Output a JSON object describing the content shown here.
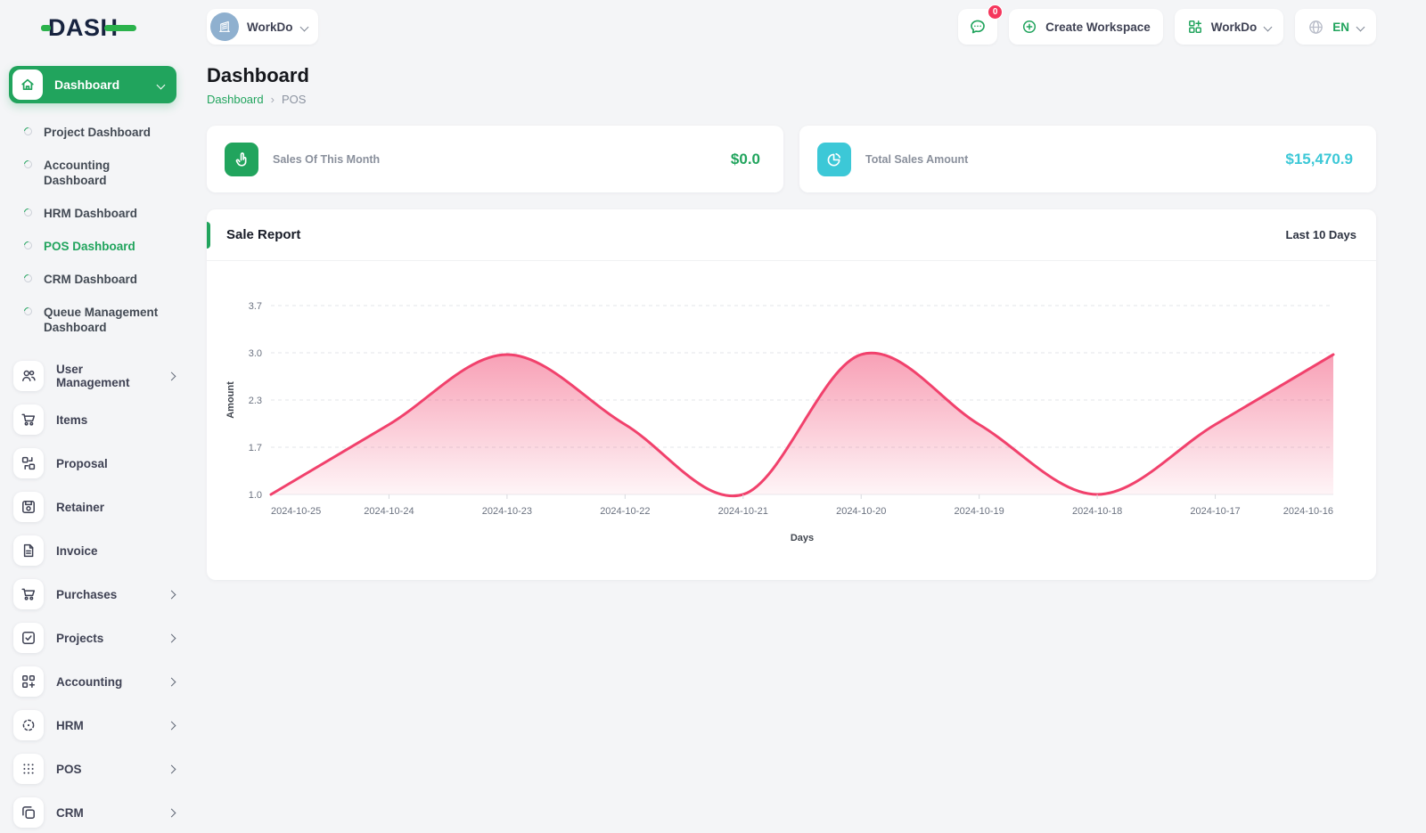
{
  "brand": {
    "logo_text": "DASH"
  },
  "topbar": {
    "workspace_switcher": {
      "label": "WorkDo"
    },
    "messages_button": {
      "badge": "0"
    },
    "create_workspace": {
      "label": "Create Workspace"
    },
    "workspace_menu": {
      "label": "WorkDo"
    },
    "language_menu": {
      "label": "EN"
    }
  },
  "page": {
    "title": "Dashboard",
    "breadcrumb": {
      "root": "Dashboard",
      "separator": "›",
      "current": "POS"
    }
  },
  "sidebar": {
    "dashboard": {
      "label": "Dashboard"
    },
    "submenu": [
      {
        "label": "Project Dashboard"
      },
      {
        "label": "Accounting Dashboard"
      },
      {
        "label": "HRM Dashboard"
      },
      {
        "label": "POS Dashboard"
      },
      {
        "label": "CRM Dashboard"
      },
      {
        "label": "Queue Management Dashboard"
      }
    ],
    "active_submenu_item": "POS Dashboard",
    "items": [
      {
        "label": "User Management"
      },
      {
        "label": "Items"
      },
      {
        "label": "Proposal"
      },
      {
        "label": "Retainer"
      },
      {
        "label": "Invoice"
      },
      {
        "label": "Purchases"
      },
      {
        "label": "Projects"
      },
      {
        "label": "Accounting"
      },
      {
        "label": "HRM"
      },
      {
        "label": "POS"
      },
      {
        "label": "CRM"
      }
    ]
  },
  "stats": [
    {
      "label": "Sales Of This Month",
      "value": "$0.0",
      "accent": "#21a45d"
    },
    {
      "label": "Total Sales Amount",
      "value": "$15,470.9",
      "accent": "#3cc8d7"
    }
  ],
  "sale_report": {
    "title": "Sale Report",
    "period": "Last 10 Days"
  },
  "chart_data": {
    "type": "area",
    "title": "Sale Report",
    "categories": [
      "2024-10-25",
      "2024-10-24",
      "2024-10-23",
      "2024-10-22",
      "2024-10-21",
      "2024-10-20",
      "2024-10-19",
      "2024-10-18",
      "2024-10-17",
      "2024-10-16"
    ],
    "values": [
      1.0,
      2.0,
      3.0,
      2.0,
      1.0,
      3.0,
      2.0,
      1.0,
      2.0,
      3.0
    ],
    "xlabel": "Days",
    "ylabel": "Amount",
    "y_ticks": [
      "3.7",
      "3.0",
      "2.3",
      "1.7",
      "1.0"
    ],
    "ylim": [
      1.0,
      3.7
    ],
    "line_color": "#f1416c",
    "fill": "pink-gradient",
    "grid": "dashed-horizontal",
    "legend": "none"
  },
  "colors": {
    "accent_green": "#21a45d",
    "accent_cyan": "#3cc8d7",
    "chart_pink": "#f1416c",
    "badge_red": "#f5365c"
  }
}
